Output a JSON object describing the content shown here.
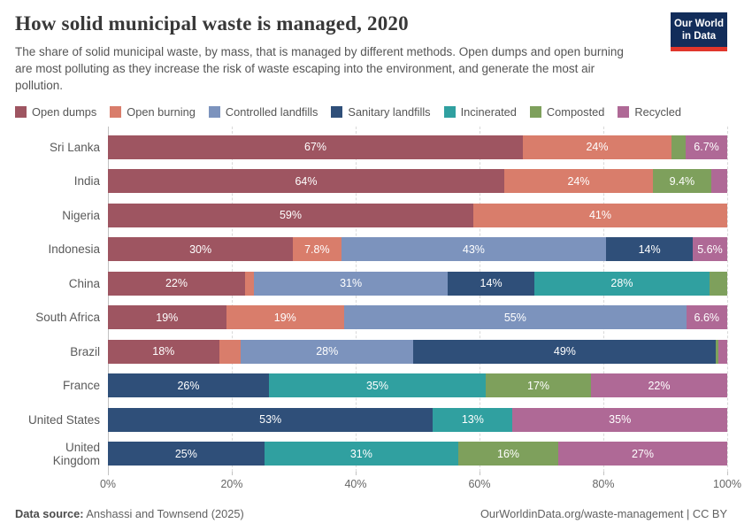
{
  "header": {
    "title": "How solid municipal waste is managed, 2020",
    "subtitle": "The share of solid municipal waste, by mass, that is managed by different methods. Open dumps and open burning are most polluting as they increase the risk of waste escaping into the environment, and generate the most air pollution.",
    "logo": {
      "line1": "Our World",
      "line2": "in Data",
      "bg_color": "#122d5a",
      "accent_color": "#e0362b"
    }
  },
  "chart_data": {
    "type": "bar",
    "variant": "stacked-horizontal",
    "unit": "%",
    "xlim": [
      0,
      100
    ],
    "grid": "dashed-vertical",
    "legend_position": "top",
    "x_ticks": [
      {
        "value": 0,
        "label": "0%"
      },
      {
        "value": 20,
        "label": "20%"
      },
      {
        "value": 40,
        "label": "40%"
      },
      {
        "value": 60,
        "label": "60%"
      },
      {
        "value": 80,
        "label": "80%"
      },
      {
        "value": 100,
        "label": "100%"
      }
    ],
    "categories": [
      "Sri Lanka",
      "India",
      "Nigeria",
      "Indonesia",
      "China",
      "South Africa",
      "Brazil",
      "France",
      "United States",
      "United Kingdom"
    ],
    "series": [
      {
        "name": "Open dumps",
        "color": "#9e5561",
        "values": [
          67,
          64,
          59,
          30,
          22,
          19,
          18,
          0,
          0,
          0
        ]
      },
      {
        "name": "Open burning",
        "color": "#d97d6b",
        "values": [
          24,
          24,
          41,
          7.8,
          1.5,
          19,
          3.5,
          0,
          0,
          0
        ]
      },
      {
        "name": "Controlled landfills",
        "color": "#7c93bd",
        "values": [
          0,
          0,
          0,
          43,
          31,
          55,
          28,
          0,
          0,
          0
        ]
      },
      {
        "name": "Sanitary landfills",
        "color": "#2f4f79",
        "values": [
          0,
          0,
          0,
          14,
          14,
          0,
          49,
          26,
          53,
          25
        ]
      },
      {
        "name": "Incinerated",
        "color": "#30a0a0",
        "values": [
          0,
          0,
          0,
          0,
          28,
          0,
          0,
          35,
          13,
          31
        ]
      },
      {
        "name": "Composted",
        "color": "#7ea05c",
        "values": [
          2.3,
          9.4,
          0,
          0,
          2.9,
          0,
          0.4,
          17,
          0,
          16
        ]
      },
      {
        "name": "Recycled",
        "color": "#af6996",
        "values": [
          6.7,
          2.6,
          0,
          5.6,
          0,
          6.6,
          1.4,
          22,
          35,
          27
        ]
      }
    ],
    "label_rule": "segment labels shown as value + % when value >= 5"
  },
  "footer": {
    "source_prefix": "Data source:",
    "source_text": " Anshassi and Townsend (2025)",
    "rights": "OurWorldinData.org/waste-management | CC BY"
  }
}
